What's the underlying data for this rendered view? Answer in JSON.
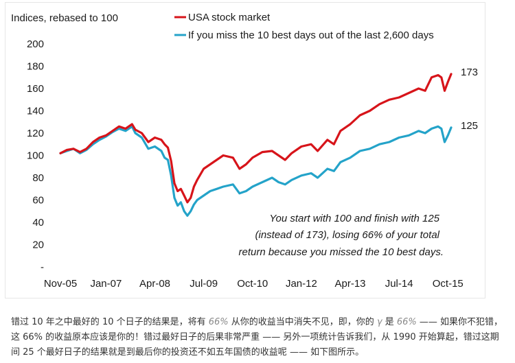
{
  "chart_data": {
    "type": "line",
    "ylabel": "Indices, rebased to 100",
    "ylim": [
      0,
      200
    ],
    "yticks": [
      0,
      20,
      40,
      60,
      80,
      100,
      120,
      140,
      160,
      180,
      200
    ],
    "ytick_labels": [
      "-",
      "20",
      "40",
      "60",
      "80",
      "100",
      "120",
      "140",
      "160",
      "180",
      "200"
    ],
    "xtick_labels": [
      "Nov-05",
      "Jan-07",
      "Apr-08",
      "Jul-09",
      "Oct-10",
      "Jan-12",
      "Apr-13",
      "Jul-14",
      "Oct-15"
    ],
    "grid": false,
    "legend_position": "top",
    "series": [
      {
        "name": "USA stock market",
        "color": "#d7141a",
        "end_label": "173",
        "x": [
          "Nov-05",
          "Jan-06",
          "Mar-06",
          "May-06",
          "Jul-06",
          "Sep-06",
          "Nov-06",
          "Jan-07",
          "Mar-07",
          "May-07",
          "Jul-07",
          "Sep-07",
          "Oct-07",
          "Dec-07",
          "Feb-08",
          "Apr-08",
          "Jun-08",
          "Jul-08",
          "Aug-08",
          "Sep-08",
          "Oct-08",
          "Nov-08",
          "Dec-08",
          "Jan-09",
          "Feb-09",
          "Mar-09",
          "Apr-09",
          "May-09",
          "Jul-09",
          "Sep-09",
          "Nov-09",
          "Jan-10",
          "Apr-10",
          "Jun-10",
          "Aug-10",
          "Oct-10",
          "Jan-11",
          "Apr-11",
          "Jun-11",
          "Aug-11",
          "Oct-11",
          "Jan-12",
          "Apr-12",
          "Jun-12",
          "Sep-12",
          "Nov-12",
          "Jan-13",
          "Apr-13",
          "Jul-13",
          "Oct-13",
          "Jan-14",
          "Apr-14",
          "Jul-14",
          "Oct-14",
          "Jan-15",
          "Mar-15",
          "May-15",
          "Jul-15",
          "Aug-15",
          "Sep-15",
          "Oct-15",
          "Nov-15"
        ],
        "values": [
          102,
          105,
          106,
          103,
          106,
          112,
          116,
          118,
          122,
          126,
          124,
          128,
          123,
          120,
          112,
          116,
          114,
          110,
          107,
          95,
          75,
          68,
          70,
          64,
          58,
          62,
          72,
          78,
          88,
          92,
          96,
          100,
          98,
          88,
          92,
          98,
          103,
          104,
          100,
          96,
          102,
          108,
          110,
          104,
          114,
          110,
          122,
          128,
          136,
          140,
          146,
          150,
          152,
          156,
          160,
          158,
          170,
          172,
          170,
          158,
          166,
          173
        ]
      },
      {
        "name": "If you miss the 10 best days out of the last 2,600 days",
        "color": "#24a3c9",
        "end_label": "125",
        "x": [
          "Nov-05",
          "Jan-06",
          "Mar-06",
          "May-06",
          "Jul-06",
          "Sep-06",
          "Nov-06",
          "Jan-07",
          "Mar-07",
          "May-07",
          "Jul-07",
          "Sep-07",
          "Oct-07",
          "Dec-07",
          "Feb-08",
          "Apr-08",
          "Jun-08",
          "Jul-08",
          "Aug-08",
          "Sep-08",
          "Oct-08",
          "Nov-08",
          "Dec-08",
          "Jan-09",
          "Feb-09",
          "Mar-09",
          "Apr-09",
          "May-09",
          "Jul-09",
          "Sep-09",
          "Nov-09",
          "Jan-10",
          "Apr-10",
          "Jun-10",
          "Aug-10",
          "Oct-10",
          "Jan-11",
          "Apr-11",
          "Jun-11",
          "Aug-11",
          "Oct-11",
          "Jan-12",
          "Apr-12",
          "Jun-12",
          "Sep-12",
          "Nov-12",
          "Jan-13",
          "Apr-13",
          "Jul-13",
          "Oct-13",
          "Jan-14",
          "Apr-14",
          "Jul-14",
          "Oct-14",
          "Jan-15",
          "Mar-15",
          "May-15",
          "Jul-15",
          "Aug-15",
          "Sep-15",
          "Oct-15",
          "Nov-15"
        ],
        "values": [
          102,
          104,
          106,
          102,
          105,
          110,
          114,
          117,
          121,
          124,
          122,
          126,
          120,
          116,
          106,
          108,
          104,
          98,
          96,
          82,
          62,
          55,
          58,
          50,
          46,
          50,
          56,
          60,
          64,
          68,
          70,
          72,
          74,
          66,
          68,
          72,
          76,
          80,
          76,
          74,
          78,
          82,
          84,
          80,
          88,
          86,
          94,
          98,
          104,
          106,
          110,
          112,
          116,
          118,
          122,
          120,
          124,
          126,
          124,
          112,
          118,
          125
        ]
      }
    ],
    "annotation": [
      "You start with 100 and finish with 125",
      "(instead of 173), losing 66% of your total",
      "return because you missed the 10 best days."
    ]
  },
  "caption": {
    "p1": "错过 10 年之中最好的 10 个日子的结果是，将有 ",
    "em1": "66%",
    "p2": " 从你的收益当中消失不见，即，你的 ",
    "em2": "γ",
    "p3": " 是 ",
    "em3": "66%",
    "p4": " —— 如果你不犯错，这 66% 的收益原本应该是你的！错过最好日子的后果非常严重 —— 另外一项统计告诉我们，从 1990 开始算起，错过这期间 25 个最好日子的结果就是到最后你的投资还不如五年国债的收益呢 —— 如下图所示。"
  }
}
